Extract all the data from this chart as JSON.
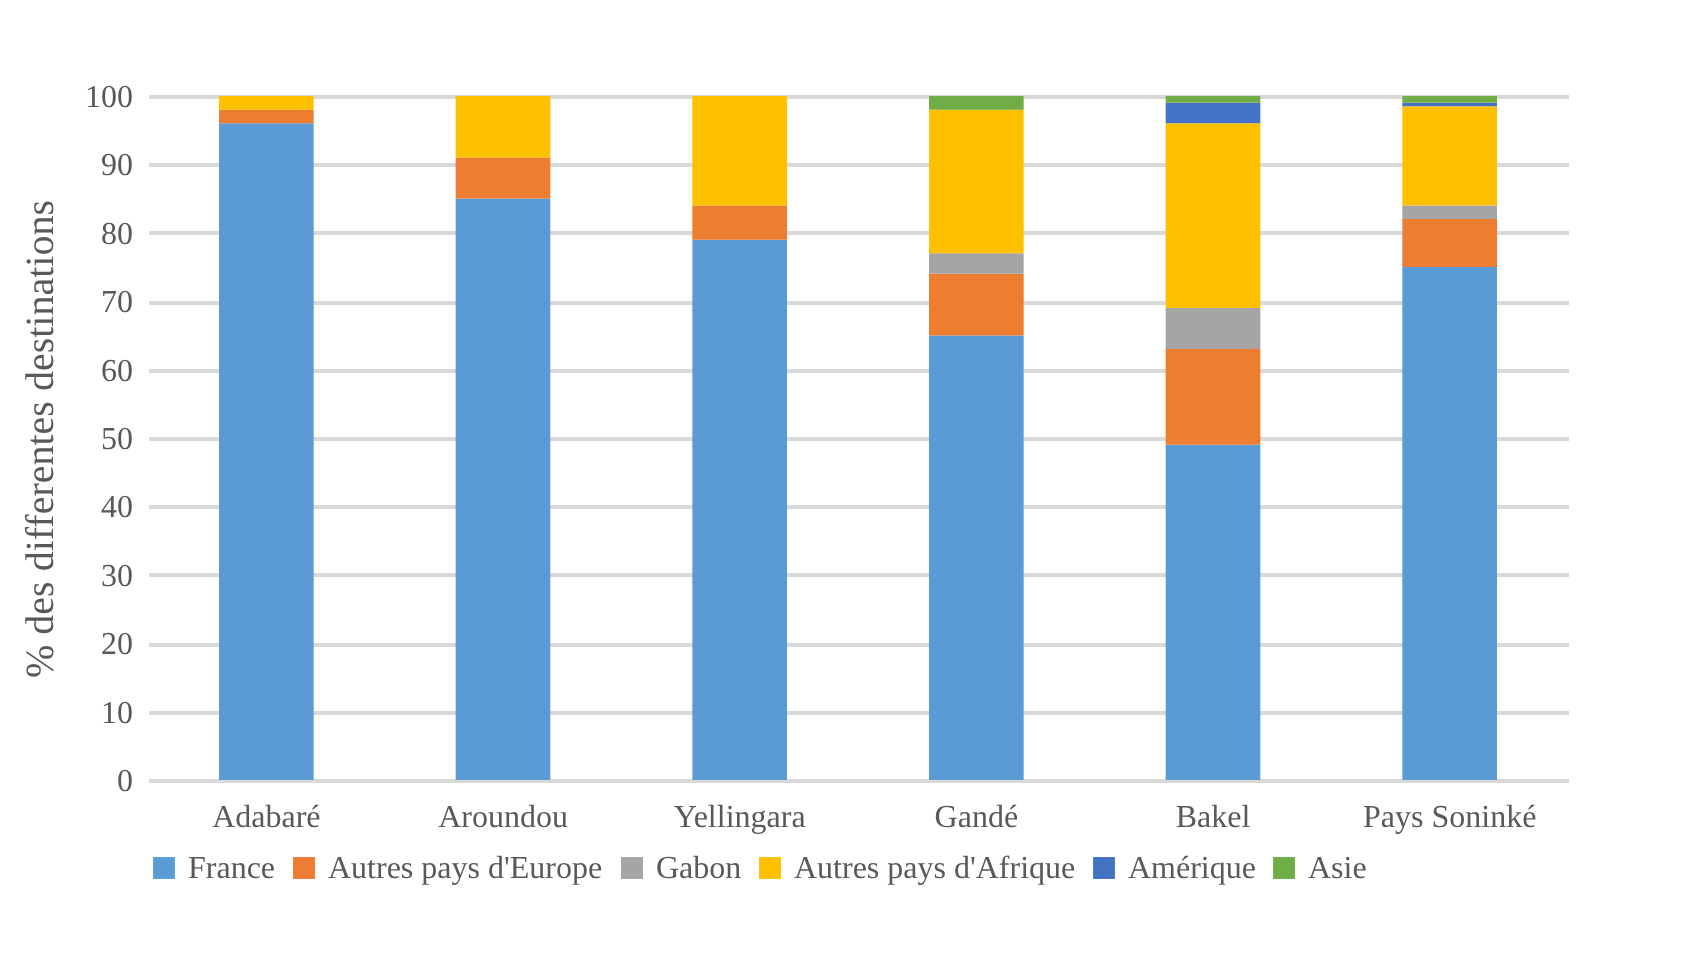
{
  "chart_data": {
    "type": "bar",
    "stacked": true,
    "ylabel": "% des differentes destinations",
    "categories": [
      "Adabaré",
      "Aroundou",
      "Yellingara",
      "Gandé",
      "Bakel",
      "Pays Soninké"
    ],
    "series": [
      {
        "name": "France",
        "color": "#5b9bd5",
        "values": [
          96,
          85,
          79,
          65,
          49,
          75
        ]
      },
      {
        "name": "Autres pays d'Europe",
        "color": "#ed7d31",
        "values": [
          2,
          6,
          5,
          9,
          14,
          7
        ]
      },
      {
        "name": "Gabon",
        "color": "#a5a5a5",
        "values": [
          0,
          0,
          0,
          3,
          6,
          2
        ]
      },
      {
        "name": "Autres pays d'Afrique",
        "color": "#ffc000",
        "values": [
          2,
          9,
          16,
          21,
          27,
          14.5
        ]
      },
      {
        "name": "Amérique",
        "color": "#4472c4",
        "values": [
          0,
          0,
          0,
          0,
          3,
          0.5
        ]
      },
      {
        "name": "Asie",
        "color": "#70ad47",
        "values": [
          0,
          0,
          0,
          2,
          1,
          1
        ]
      }
    ],
    "ylim": [
      0,
      100
    ],
    "yticks": [
      0,
      10,
      20,
      30,
      40,
      50,
      60,
      70,
      80,
      90,
      100
    ],
    "grid": "y",
    "legend": "bottom"
  }
}
